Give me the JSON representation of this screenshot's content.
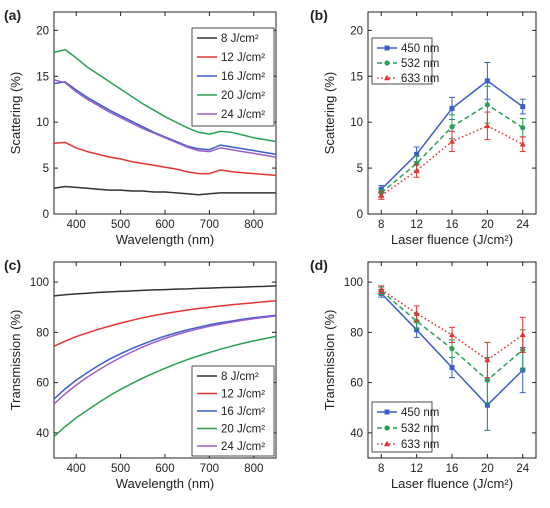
{
  "chart_data": [
    {
      "panel": "(a)",
      "type": "line",
      "xlabel": "Wavelength (nm)",
      "ylabel": "Scattering (%)",
      "xlim": [
        350,
        850
      ],
      "ylim": [
        0,
        22
      ],
      "xticks": [
        "400",
        "500",
        "600",
        "700",
        "800"
      ],
      "yticks": [
        "0",
        "5",
        "10",
        "15",
        "20"
      ],
      "grid": false,
      "legend_position": "top-right",
      "x": [
        350,
        375,
        400,
        425,
        450,
        475,
        500,
        525,
        550,
        575,
        600,
        625,
        650,
        675,
        700,
        725,
        750,
        775,
        800,
        825,
        850
      ],
      "series": [
        {
          "name": "8 J/cm²",
          "color": "#333333",
          "values": [
            2.8,
            3.0,
            2.9,
            2.8,
            2.7,
            2.6,
            2.6,
            2.5,
            2.5,
            2.4,
            2.4,
            2.3,
            2.2,
            2.1,
            2.2,
            2.3,
            2.3,
            2.3,
            2.3,
            2.3,
            2.3
          ]
        },
        {
          "name": "12 J/cm²",
          "color": "#e63232",
          "values": [
            7.7,
            7.8,
            7.2,
            6.8,
            6.5,
            6.2,
            6.0,
            5.7,
            5.5,
            5.3,
            5.1,
            4.9,
            4.6,
            4.4,
            4.4,
            4.8,
            4.6,
            4.5,
            4.4,
            4.3,
            4.2
          ]
        },
        {
          "name": "16 J/cm²",
          "color": "#3a5ec8",
          "values": [
            14.2,
            14.4,
            13.5,
            12.7,
            12.0,
            11.3,
            10.7,
            10.1,
            9.5,
            8.9,
            8.4,
            7.9,
            7.4,
            7.1,
            7.0,
            7.5,
            7.3,
            7.1,
            6.9,
            6.7,
            6.5
          ]
        },
        {
          "name": "20 J/cm²",
          "color": "#2aa055",
          "values": [
            17.6,
            17.9,
            17.0,
            16.0,
            15.2,
            14.4,
            13.6,
            12.8,
            12.0,
            11.3,
            10.6,
            10.0,
            9.4,
            8.9,
            8.7,
            9.0,
            8.9,
            8.6,
            8.3,
            8.1,
            7.9
          ]
        },
        {
          "name": "24 J/cm²",
          "color": "#9b5fc8",
          "values": [
            14.6,
            14.3,
            13.3,
            12.5,
            11.8,
            11.1,
            10.5,
            9.9,
            9.3,
            8.8,
            8.3,
            7.8,
            7.3,
            6.9,
            6.8,
            7.2,
            7.0,
            6.8,
            6.6,
            6.4,
            6.2
          ]
        }
      ]
    },
    {
      "panel": "(b)",
      "type": "line",
      "xlabel": "Laser fluence (J/cm²)",
      "ylabel": "Scattering (%)",
      "xlim": [
        6.5,
        25.5
      ],
      "ylim": [
        0,
        22
      ],
      "xticks": [
        "8",
        "12",
        "16",
        "20",
        "24"
      ],
      "yticks": [
        "0",
        "5",
        "10",
        "15",
        "20"
      ],
      "grid": false,
      "legend_position": "top-left",
      "x": [
        8,
        12,
        16,
        20,
        24
      ],
      "series": [
        {
          "name": "450 nm",
          "color": "#3a5ec8",
          "style": "solid",
          "marker": "square",
          "values": [
            2.7,
            6.5,
            11.5,
            14.5,
            11.7
          ],
          "errors": [
            0.4,
            0.8,
            1.2,
            2.0,
            0.8
          ]
        },
        {
          "name": "532 nm",
          "color": "#2aa055",
          "style": "dashed",
          "marker": "circle",
          "values": [
            2.3,
            5.5,
            9.5,
            11.9,
            9.4
          ],
          "errors": [
            0.4,
            0.8,
            1.3,
            2.0,
            1.0
          ]
        },
        {
          "name": "633 nm",
          "color": "#e63232",
          "style": "dotted",
          "marker": "triangle",
          "values": [
            2.0,
            4.7,
            7.9,
            9.6,
            7.6
          ],
          "errors": [
            0.4,
            0.7,
            1.1,
            1.5,
            0.8
          ]
        }
      ]
    },
    {
      "panel": "(c)",
      "type": "line",
      "xlabel": "Wavelength (nm)",
      "ylabel": "Transmission (%)",
      "xlim": [
        350,
        850
      ],
      "ylim": [
        30,
        108
      ],
      "xticks": [
        "400",
        "500",
        "600",
        "700",
        "800"
      ],
      "yticks": [
        "40",
        "60",
        "80",
        "100"
      ],
      "grid": false,
      "legend_position": "bottom-right",
      "x": [
        350,
        375,
        400,
        425,
        450,
        475,
        500,
        525,
        550,
        575,
        600,
        625,
        650,
        675,
        700,
        725,
        750,
        775,
        800,
        825,
        850
      ],
      "series": [
        {
          "name": "8 J/cm²",
          "color": "#333333",
          "values": [
            94.5,
            95.0,
            95.3,
            95.6,
            95.9,
            96.1,
            96.3,
            96.5,
            96.7,
            96.9,
            97.0,
            97.2,
            97.3,
            97.5,
            97.6,
            97.8,
            97.9,
            98.0,
            98.2,
            98.3,
            98.5
          ]
        },
        {
          "name": "12 J/cm²",
          "color": "#e63232",
          "values": [
            74.5,
            76.5,
            78.3,
            79.8,
            81.2,
            82.5,
            83.7,
            84.8,
            85.8,
            86.7,
            87.5,
            88.2,
            88.9,
            89.5,
            90.0,
            90.5,
            91.0,
            91.4,
            91.8,
            92.2,
            92.6
          ]
        },
        {
          "name": "16 J/cm²",
          "color": "#3a5ec8",
          "values": [
            53.5,
            57.5,
            61.0,
            64.0,
            66.8,
            69.3,
            71.5,
            73.5,
            75.3,
            77.0,
            78.5,
            79.8,
            81.0,
            82.0,
            83.0,
            83.8,
            84.5,
            85.2,
            85.8,
            86.3,
            86.8
          ]
        },
        {
          "name": "20 J/cm²",
          "color": "#2aa055",
          "values": [
            38.5,
            42.5,
            46.0,
            49.0,
            52.0,
            54.8,
            57.3,
            59.6,
            61.8,
            63.8,
            65.7,
            67.5,
            69.1,
            70.6,
            72.0,
            73.3,
            74.5,
            75.6,
            76.6,
            77.5,
            78.4
          ]
        },
        {
          "name": "24 J/cm²",
          "color": "#9b5fc8",
          "values": [
            51.5,
            55.5,
            59.0,
            62.2,
            65.0,
            67.6,
            70.0,
            72.2,
            74.2,
            76.0,
            77.6,
            79.0,
            80.3,
            81.4,
            82.4,
            83.3,
            84.1,
            84.8,
            85.4,
            86.0,
            86.5
          ]
        }
      ]
    },
    {
      "panel": "(d)",
      "type": "line",
      "xlabel": "Laser fluence (J/cm²)",
      "ylabel": "Transmission (%)",
      "xlim": [
        6.5,
        25.5
      ],
      "ylim": [
        30,
        108
      ],
      "xticks": [
        "8",
        "12",
        "16",
        "20",
        "24"
      ],
      "yticks": [
        "40",
        "60",
        "80",
        "100"
      ],
      "grid": false,
      "legend_position": "bottom-left",
      "x": [
        8,
        12,
        16,
        20,
        24
      ],
      "series": [
        {
          "name": "450 nm",
          "color": "#3a5ec8",
          "style": "solid",
          "marker": "square",
          "values": [
            95.5,
            81.0,
            66.0,
            51.0,
            65.0
          ],
          "errors": [
            1.5,
            3.0,
            4.0,
            10.0,
            9.0
          ]
        },
        {
          "name": "532 nm",
          "color": "#2aa055",
          "style": "dashed",
          "marker": "circle",
          "values": [
            96.5,
            84.5,
            73.5,
            61.0,
            73.0
          ],
          "errors": [
            1.5,
            3.0,
            3.5,
            9.0,
            8.0
          ]
        },
        {
          "name": "633 nm",
          "color": "#e63232",
          "style": "dotted",
          "marker": "triangle",
          "values": [
            97.0,
            87.5,
            79.0,
            69.0,
            79.0
          ],
          "errors": [
            1.5,
            3.0,
            3.0,
            7.0,
            7.0
          ]
        }
      ]
    }
  ]
}
